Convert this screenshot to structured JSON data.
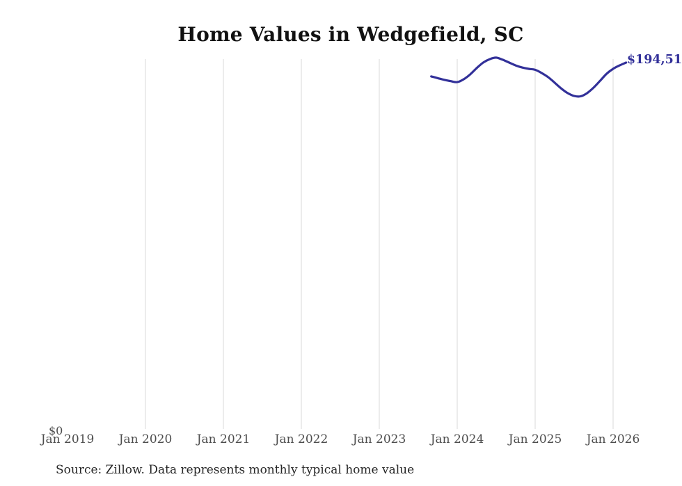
{
  "chart_data": {
    "type": "line",
    "title": "Home Values in Wedgefield, SC",
    "source_note": "Source: Zillow. Data represents monthly typical home value",
    "y_zero_label": "$0",
    "latest_value_label": "$194,51",
    "x_tick_labels": [
      "Jan 2019",
      "Jan 2020",
      "Jan 2021",
      "Jan 2022",
      "Jan 2023",
      "Jan 2024",
      "Jan 2025",
      "Jan 2026"
    ],
    "xlabel": "",
    "ylabel": "",
    "ylim": [
      0,
      200000
    ],
    "grid": "vertical-only",
    "legend": "none",
    "colors": {
      "line": "#323099",
      "gridline": "#d8d8d8",
      "axis_text": "#4d4d4d",
      "title_text": "#111111",
      "source_text": "#262626"
    },
    "series": [
      {
        "name": "Monthly typical home value",
        "points": [
          {
            "date": "2023-09",
            "value": 187200
          },
          {
            "date": "2023-10",
            "value": 186300
          },
          {
            "date": "2023-11",
            "value": 185400
          },
          {
            "date": "2023-12",
            "value": 184700
          },
          {
            "date": "2024-01",
            "value": 184200
          },
          {
            "date": "2024-02",
            "value": 185700
          },
          {
            "date": "2024-03",
            "value": 188300
          },
          {
            "date": "2024-04",
            "value": 191600
          },
          {
            "date": "2024-05",
            "value": 194500
          },
          {
            "date": "2024-06",
            "value": 196300
          },
          {
            "date": "2024-07",
            "value": 197100
          },
          {
            "date": "2024-08",
            "value": 196000
          },
          {
            "date": "2024-09",
            "value": 194500
          },
          {
            "date": "2024-10",
            "value": 193000
          },
          {
            "date": "2024-11",
            "value": 191900
          },
          {
            "date": "2024-12",
            "value": 191200
          },
          {
            "date": "2025-01",
            "value": 190700
          },
          {
            "date": "2025-02",
            "value": 189000
          },
          {
            "date": "2025-03",
            "value": 186800
          },
          {
            "date": "2025-04",
            "value": 183900
          },
          {
            "date": "2025-05",
            "value": 180900
          },
          {
            "date": "2025-06",
            "value": 178400
          },
          {
            "date": "2025-07",
            "value": 176900
          },
          {
            "date": "2025-08",
            "value": 176700
          },
          {
            "date": "2025-09",
            "value": 178400
          },
          {
            "date": "2025-10",
            "value": 181300
          },
          {
            "date": "2025-11",
            "value": 184900
          },
          {
            "date": "2025-12",
            "value": 188600
          },
          {
            "date": "2026-01",
            "value": 191200
          },
          {
            "date": "2026-02",
            "value": 193000
          },
          {
            "date": "2026-03",
            "value": 194510
          }
        ]
      }
    ]
  }
}
